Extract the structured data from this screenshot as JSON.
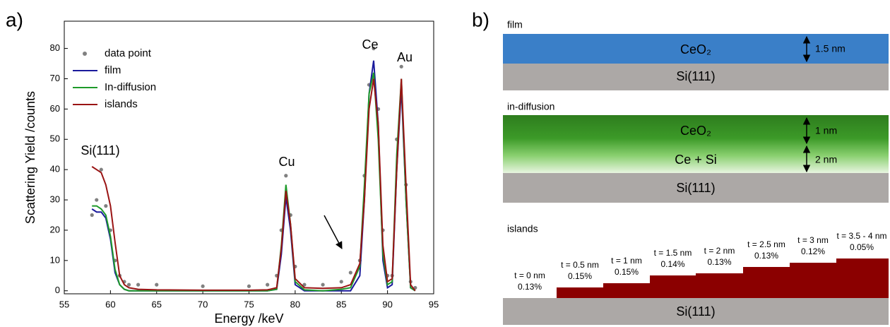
{
  "chart_data": {
    "type": "line",
    "panel_label": "a)",
    "x_label": "Energy /keV",
    "y_label": "Scattering Yield /counts",
    "xlim": [
      55,
      95
    ],
    "ylim": [
      -1,
      89
    ],
    "xticks": [
      55,
      60,
      65,
      70,
      75,
      80,
      85,
      90,
      95
    ],
    "yticks": [
      0,
      10,
      20,
      30,
      40,
      50,
      60,
      70,
      80
    ],
    "legend": "upper left",
    "annotations": [
      "Si(111)",
      "Cu",
      "Ce",
      "Au"
    ],
    "x": [
      58,
      58.5,
      59,
      59.5,
      60,
      60.5,
      61,
      61.5,
      62,
      63,
      65,
      70,
      75,
      77,
      78,
      78.5,
      79,
      79.5,
      80,
      81,
      83,
      85,
      86,
      87,
      87.5,
      88,
      88.5,
      89,
      89.5,
      90,
      90.5,
      91,
      91.5,
      92,
      92.5,
      93
    ],
    "series": [
      {
        "name": "data point",
        "type": "scatter",
        "color": "#808080",
        "values": [
          25,
          30,
          40,
          28,
          20,
          10,
          5,
          3,
          2,
          2,
          2,
          1.5,
          1.5,
          2,
          5,
          20,
          38,
          25,
          8,
          2,
          2,
          3,
          6,
          10,
          38,
          68,
          80,
          60,
          20,
          5,
          5,
          50,
          74,
          35,
          3,
          1
        ]
      },
      {
        "name": "film",
        "color": "#1a1a9c",
        "values": [
          27,
          26,
          26,
          24,
          17,
          6,
          2,
          0.5,
          0,
          0,
          0,
          0,
          0,
          0,
          0.5,
          12,
          31,
          20,
          2,
          0,
          0,
          0,
          0,
          5,
          30,
          65,
          76,
          55,
          10,
          1,
          2,
          40,
          67,
          30,
          1,
          0
        ]
      },
      {
        "name": "In-diffusion",
        "color": "#1e9a2a",
        "values": [
          28,
          28,
          27,
          25,
          18,
          7,
          2,
          0.5,
          0,
          0,
          0,
          0,
          0,
          0,
          0.5,
          15,
          35,
          22,
          3,
          0.3,
          0,
          0.5,
          1,
          8,
          35,
          65,
          72,
          50,
          12,
          2,
          3,
          45,
          70,
          30,
          1,
          0
        ]
      },
      {
        "name": "islands",
        "color": "#9a1414",
        "values": [
          41,
          40,
          39,
          35,
          28,
          16,
          5,
          2,
          1,
          0.5,
          0.3,
          0.2,
          0.2,
          0.3,
          1,
          14,
          33,
          22,
          4,
          1,
          0.8,
          1,
          2,
          9,
          30,
          60,
          70,
          55,
          15,
          3,
          4,
          40,
          70,
          35,
          2,
          0
        ]
      }
    ]
  },
  "diagram": {
    "panel_label": "b)",
    "film": {
      "label": "film",
      "top_layer": "CeO₂",
      "substrate": "Si(111)",
      "thickness": "1.5 nm"
    },
    "in_diffusion": {
      "label": "in-diffusion",
      "top_layer": "CeO₂",
      "mixed_layer": "Ce + Si",
      "substrate": "Si(111)",
      "top_thickness": "1 nm",
      "mixed_thickness": "2 nm"
    },
    "islands": {
      "label": "islands",
      "substrate": "Si(111)",
      "steps": [
        {
          "thickness": "t = 0 nm",
          "fraction": "0.13%"
        },
        {
          "thickness": "t = 0.5 nm",
          "fraction": "0.15%"
        },
        {
          "thickness": "t = 1 nm",
          "fraction": "0.15%"
        },
        {
          "thickness": "t = 1.5 nm",
          "fraction": "0.14%"
        },
        {
          "thickness": "t = 2 nm",
          "fraction": "0.13%"
        },
        {
          "thickness": "t = 2.5 nm",
          "fraction": "0.13%"
        },
        {
          "thickness": "t = 3 nm",
          "fraction": "0.12%"
        },
        {
          "thickness": "t = 3.5 - 4 nm",
          "fraction": "0.05%"
        }
      ]
    }
  }
}
